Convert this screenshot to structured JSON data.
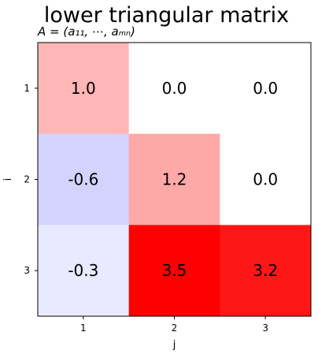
{
  "chart_data": {
    "type": "heatmap",
    "title": "lower triangular matrix",
    "subtitle": "A = (a₁₁, ⋯, aₘₙ)",
    "xlabel": "j",
    "ylabel": "i",
    "x_categories": [
      "1",
      "2",
      "3"
    ],
    "y_categories": [
      "1",
      "2",
      "3"
    ],
    "values": [
      [
        1.0,
        0.0,
        0.0
      ],
      [
        -0.6,
        1.2,
        0.0
      ],
      [
        -0.3,
        3.5,
        3.2
      ]
    ],
    "cell_labels": [
      [
        "1.0",
        "0.0",
        "0.0"
      ],
      [
        "-0.6",
        "1.2",
        "0.0"
      ],
      [
        "-0.3",
        "3.5",
        "3.2"
      ]
    ],
    "colormap": "bwr",
    "color_range": [
      -3.5,
      3.5
    ],
    "grid": false
  }
}
